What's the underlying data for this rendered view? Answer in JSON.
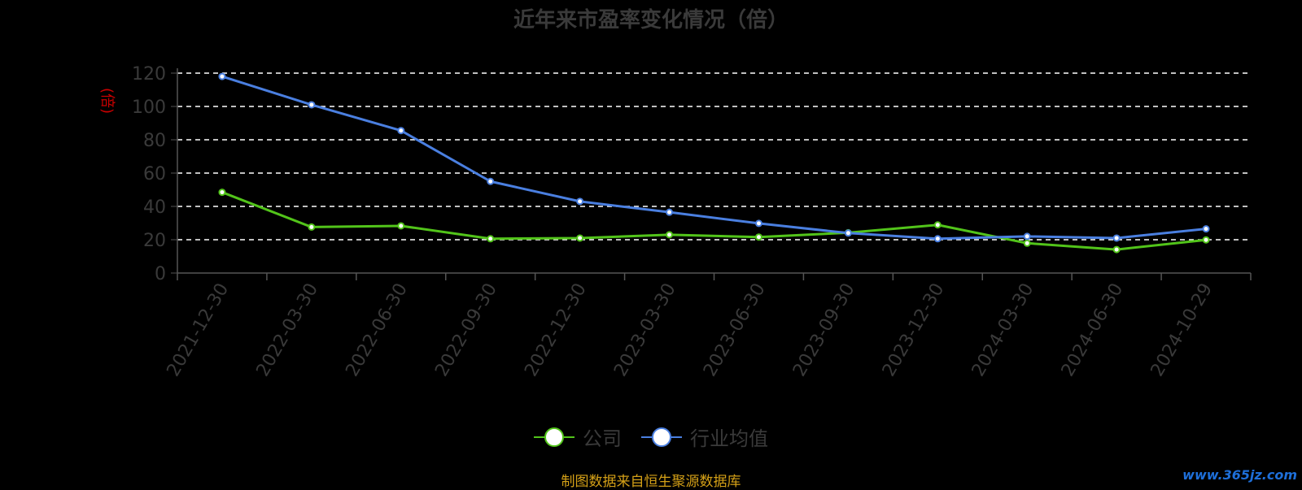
{
  "chart_data": {
    "type": "line",
    "title": "近年来市盈率变化情况（倍）",
    "y_unit_label": "(倍)",
    "categories": [
      "2021-12-30",
      "2022-03-30",
      "2022-06-30",
      "2022-09-30",
      "2022-12-30",
      "2023-03-30",
      "2023-06-30",
      "2023-09-30",
      "2023-12-30",
      "2024-03-30",
      "2024-06-30",
      "2024-10-29"
    ],
    "series": [
      {
        "name": "公司",
        "color": "#52c41a",
        "values": [
          48.5,
          27.6,
          28.3,
          20.6,
          21.0,
          23.0,
          21.6,
          24.2,
          28.9,
          17.9,
          14.1,
          19.9
        ]
      },
      {
        "name": "行业均值",
        "color": "#4a7fe0",
        "values": [
          118.0,
          101.0,
          85.5,
          55.0,
          43.0,
          36.5,
          29.8,
          24.0,
          20.6,
          22.0,
          21.0,
          26.5
        ]
      }
    ],
    "ylim": [
      0,
      120
    ],
    "yticks": [
      0,
      20,
      40,
      60,
      80,
      100,
      120
    ],
    "grid": true,
    "legend_position": "bottom"
  },
  "footer": {
    "source": "制图数据来自恒生聚源数据库",
    "watermark": "www.365jz.com"
  }
}
